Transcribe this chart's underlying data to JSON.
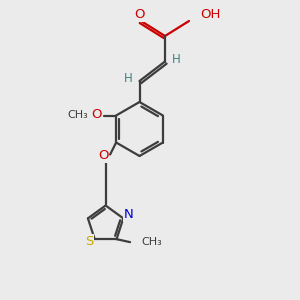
{
  "bg_color": "#ebebeb",
  "bond_color": "#3d3d3d",
  "oxygen_color": "#cc0000",
  "nitrogen_color": "#0000cc",
  "sulfur_color": "#ccaa00",
  "hydrogen_color": "#3d8080",
  "line_width": 1.6,
  "figsize": [
    3.0,
    3.0
  ],
  "dpi": 100,
  "xlim": [
    0,
    10
  ],
  "ylim": [
    0,
    10
  ]
}
